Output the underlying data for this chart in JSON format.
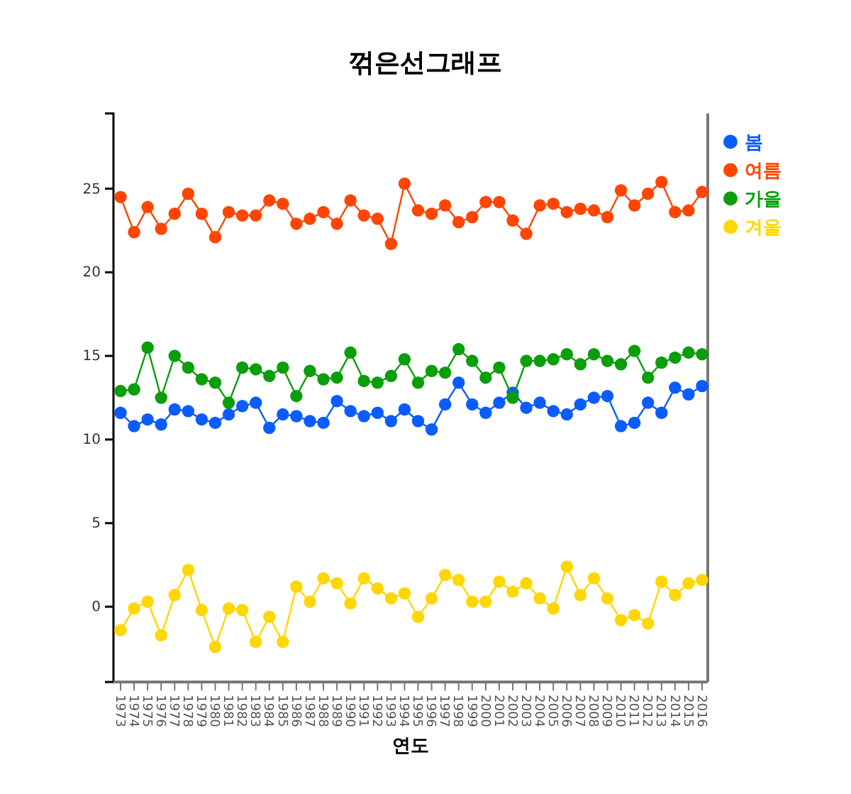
{
  "chart_data": {
    "type": "line",
    "title": "꺾은선그래프",
    "xlabel": "연도",
    "categories": [
      "1973",
      "1974",
      "1975",
      "1976",
      "1977",
      "1978",
      "1979",
      "1980",
      "1981",
      "1982",
      "1983",
      "1984",
      "1985",
      "1986",
      "1987",
      "1988",
      "1989",
      "1990",
      "1991",
      "1992",
      "1993",
      "1994",
      "1995",
      "1996",
      "1997",
      "1998",
      "1999",
      "2000",
      "2001",
      "2002",
      "2003",
      "2004",
      "2005",
      "2006",
      "2007",
      "2008",
      "2009",
      "2010",
      "2011",
      "2012",
      "2013",
      "2014",
      "2015",
      "2016"
    ],
    "ylim": [
      -4.5,
      29.5
    ],
    "yticks": [
      0,
      5,
      10,
      15,
      20,
      25
    ],
    "grid": false,
    "legend": "top right",
    "marker": "circle",
    "line_style": "solid",
    "series": [
      {
        "name": "봄",
        "color": "#0a5cff",
        "values": [
          11.6,
          10.8,
          11.2,
          10.9,
          11.8,
          11.7,
          11.2,
          11.0,
          11.5,
          12.0,
          12.2,
          10.7,
          11.5,
          11.4,
          11.1,
          11.0,
          12.3,
          11.7,
          11.4,
          11.6,
          11.1,
          11.8,
          11.1,
          10.6,
          12.1,
          13.4,
          12.1,
          11.6,
          12.2,
          12.8,
          11.9,
          12.2,
          11.7,
          11.5,
          12.1,
          12.5,
          12.6,
          10.8,
          11.0,
          12.2,
          11.6,
          13.1,
          12.7,
          13.2
        ]
      },
      {
        "name": "여름",
        "color": "#ff4500",
        "values": [
          24.5,
          22.4,
          23.9,
          22.6,
          23.5,
          24.7,
          23.5,
          22.1,
          23.6,
          23.4,
          23.4,
          24.3,
          24.1,
          22.9,
          23.2,
          23.6,
          22.9,
          24.3,
          23.4,
          23.2,
          21.7,
          25.3,
          23.7,
          23.5,
          24.0,
          23.0,
          23.3,
          24.2,
          24.2,
          23.1,
          22.3,
          24.0,
          24.1,
          23.6,
          23.8,
          23.7,
          23.3,
          24.9,
          24.0,
          24.7,
          25.4,
          23.6,
          23.7,
          24.8
        ]
      },
      {
        "name": "가을",
        "color": "#0a9e0a",
        "values": [
          12.9,
          13.0,
          15.5,
          12.5,
          15.0,
          14.3,
          13.6,
          13.4,
          12.2,
          14.3,
          14.2,
          13.8,
          14.3,
          12.6,
          14.1,
          13.6,
          13.7,
          15.2,
          13.5,
          13.4,
          13.8,
          14.8,
          13.4,
          14.1,
          14.0,
          15.4,
          14.7,
          13.7,
          14.3,
          12.5,
          14.7,
          14.7,
          14.8,
          15.1,
          14.5,
          15.1,
          14.7,
          14.5,
          15.3,
          13.7,
          14.6,
          14.9,
          15.2,
          15.1
        ]
      },
      {
        "name": "겨울",
        "color": "#ffd700",
        "values": [
          -1.4,
          -0.1,
          0.3,
          -1.7,
          0.7,
          2.2,
          -0.2,
          -2.4,
          -0.1,
          -0.2,
          -2.1,
          -0.6,
          -2.1,
          1.2,
          0.3,
          1.7,
          1.4,
          0.2,
          1.7,
          1.1,
          0.5,
          0.8,
          -0.6,
          0.5,
          1.9,
          1.6,
          0.3,
          0.3,
          1.5,
          0.9,
          1.4,
          0.5,
          -0.1,
          2.4,
          0.7,
          1.7,
          0.5,
          -0.8,
          -0.5,
          -1.0,
          1.5,
          0.7,
          1.4,
          1.6
        ]
      }
    ]
  }
}
